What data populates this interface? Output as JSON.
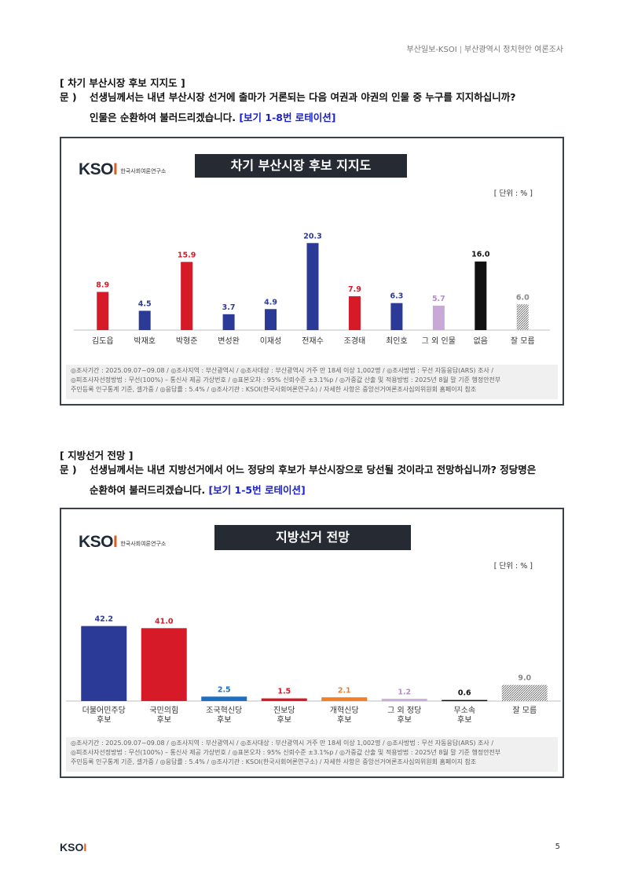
{
  "header": {
    "source": "부산일보-KSOI",
    "separator": "|",
    "title": "부산광역시 정치현안 여론조사"
  },
  "section1": {
    "title": "[ 차기 부산시장 후보 지지도 ]",
    "q_prefix": "문 )",
    "q_line1": "선생님께서는 내년 부산시장 선거에 출마가 거론되는 다음 여권과 야권의 인물 중 누구를 지지하십니까?",
    "q_line2": "인물은 순환하여 불러드리겠습니다.",
    "q_rotation": "[보기 1-8번 로테이션]"
  },
  "section2": {
    "title": "[ 지방선거 전망 ]",
    "q_prefix": "문 )",
    "q_line1": "선생님께서는 내년 지방선거에서 어느 정당의 후보가 부산시장으로 당선될 것이라고 전망하십니까? 정당명은",
    "q_line2": "순환하여 불러드리겠습니다.",
    "q_rotation": "[보기 1-5번 로테이션]"
  },
  "logo": {
    "text_k": "KSO",
    "text_i": "I",
    "sub": "한국사회여론연구소"
  },
  "footnote": {
    "line1": "◎조사기간 : 2025.09.07~09.08 / ◎조사지역 : 부산광역시 / ◎조사대상 : 부산광역시 거주 만 18세 이상 1,002명 / ◎조사방법 : 무선 자동응답(ARS) 조사 /",
    "line2": "◎피조사자선정방법 : 무선(100%) – 통신사 제공 가상번호 / ◎표본오차 : 95% 신뢰수준 ±3.1%p / ◎가중값 산출 및 적용방법 : 2025년 8월 말 기준 행정안전부",
    "line3": "주민등록 인구통계 기준, 셀가중 / ◎응답률 : 5.4% / ◎조사기관 : KSOI(한국사회여론연구소) / 자세한 사항은 중앙선거여론조사심의위원회 홈페이지 참조"
  },
  "chart_data": [
    {
      "type": "bar",
      "title": "차기 부산시장 후보 지지도",
      "unit_label": "[ 단위 : % ]",
      "categories": [
        "김도읍",
        "박재호",
        "박형준",
        "변성완",
        "이재성",
        "전재수",
        "조경태",
        "최인호",
        "그 외 인물",
        "없음",
        "잘 모름"
      ],
      "values": [
        8.9,
        4.5,
        15.9,
        3.7,
        4.9,
        20.3,
        7.9,
        6.3,
        5.7,
        16.0,
        6.0
      ],
      "value_labels": [
        "8.9",
        "4.5",
        "15.9",
        "3.7",
        "4.9",
        "20.3",
        "7.9",
        "6.3",
        "5.7",
        "16.0",
        "6.0"
      ],
      "colors": [
        "#d71a28",
        "#2b3a97",
        "#d71a28",
        "#2b3a97",
        "#2b3a97",
        "#2b3a97",
        "#d71a28",
        "#2b3a97",
        "#c7a8d6",
        "#111111",
        "hatch"
      ],
      "label_colors": [
        "#d71a28",
        "#2b3a97",
        "#d71a28",
        "#2b3a97",
        "#2b3a97",
        "#2b3a97",
        "#d71a28",
        "#2b3a97",
        "#b48cc8",
        "#111111",
        "#888888"
      ],
      "ylim": [
        0,
        22
      ]
    },
    {
      "type": "bar",
      "title": "지방선거 전망",
      "unit_label": "[ 단위 : % ]",
      "categories": [
        [
          "더불어민주당",
          "후보"
        ],
        [
          "국민의힘",
          "후보"
        ],
        [
          "조국혁신당",
          "후보"
        ],
        [
          "진보당",
          "후보"
        ],
        [
          "개혁신당",
          "후보"
        ],
        [
          "그 외 정당",
          "후보"
        ],
        [
          "무소속",
          "후보"
        ],
        [
          "잘 모름"
        ]
      ],
      "values": [
        42.2,
        41.0,
        2.5,
        1.5,
        2.1,
        1.2,
        0.6,
        9.0
      ],
      "value_labels": [
        "42.2",
        "41.0",
        "2.5",
        "1.5",
        "2.1",
        "1.2",
        "0.6",
        "9.0"
      ],
      "colors": [
        "#2b3a97",
        "#d71a28",
        "#1f6fc0",
        "#d71a28",
        "#f07f2a",
        "#c7a8d6",
        "#111111",
        "hatch"
      ],
      "label_colors": [
        "#2b3a97",
        "#d71a28",
        "#1f6fc0",
        "#d71a28",
        "#f07f2a",
        "#b48cc8",
        "#111111",
        "#888888"
      ],
      "ylim": [
        0,
        46
      ]
    }
  ],
  "page_number": "5"
}
